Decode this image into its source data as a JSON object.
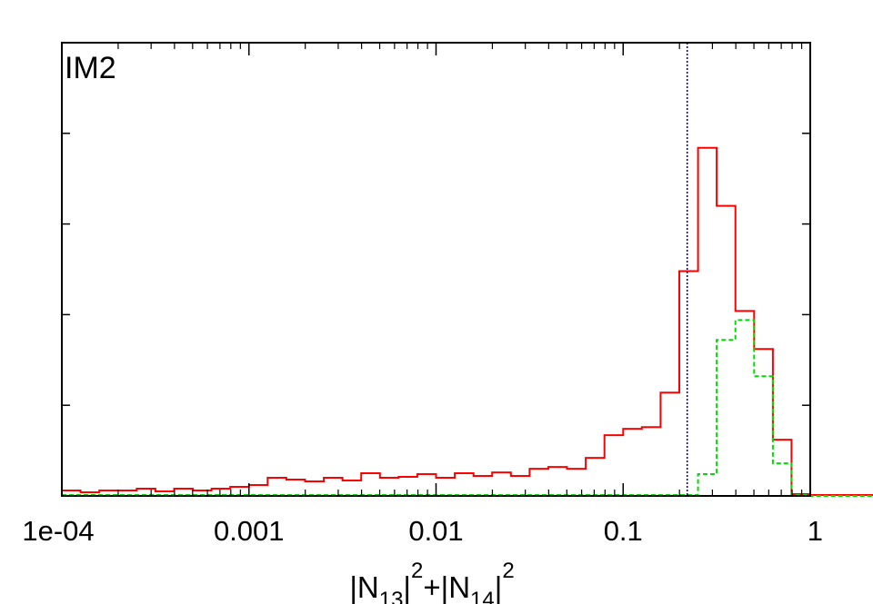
{
  "chart_data": {
    "type": "histogram",
    "panel_label": "IM2",
    "xlabel": {
      "parts": [
        {
          "text": "|N",
          "shift": "none"
        },
        {
          "text": "13",
          "shift": "sub"
        },
        {
          "text": "|",
          "shift": "none"
        },
        {
          "text": "2",
          "shift": "super"
        },
        {
          "text": "+|N",
          "shift": "none"
        },
        {
          "text": "14",
          "shift": "sub"
        },
        {
          "text": "|",
          "shift": "none"
        },
        {
          "text": "2",
          "shift": "super"
        }
      ]
    },
    "xscale": "log",
    "xlim": [
      0.0001,
      1
    ],
    "xticks": [
      {
        "value": 0.0001,
        "label": "1e-04"
      },
      {
        "value": 0.001,
        "label": "0.001"
      },
      {
        "value": 0.01,
        "label": "0.01"
      },
      {
        "value": 0.1,
        "label": "0.1"
      },
      {
        "value": 1,
        "label": "1"
      }
    ],
    "ylim": [
      0,
      5.0
    ],
    "yticks": [
      0,
      1,
      2,
      3,
      4,
      5
    ],
    "y_tick_labels_shown": false,
    "bins_per_decade": 10,
    "series": [
      {
        "style": "solid",
        "color": "#ff0000",
        "values": [
          0.06,
          0.04,
          0.06,
          0.06,
          0.08,
          0.05,
          0.08,
          0.06,
          0.08,
          0.1,
          0.12,
          0.2,
          0.18,
          0.16,
          0.2,
          0.17,
          0.25,
          0.2,
          0.21,
          0.24,
          0.2,
          0.25,
          0.22,
          0.26,
          0.22,
          0.3,
          0.32,
          0.3,
          0.42,
          0.67,
          0.74,
          0.76,
          1.14,
          2.48,
          3.84,
          3.2,
          2.04,
          1.62,
          0.62,
          0.02,
          0.01,
          0.01,
          0.01,
          0.01
        ]
      },
      {
        "style": "dashed",
        "color": "#00dd00",
        "values": [
          0.01,
          0.01,
          0.01,
          0.01,
          0.01,
          0.01,
          0.01,
          0.01,
          0.01,
          0.01,
          0.01,
          0.01,
          0.01,
          0.01,
          0.01,
          0.01,
          0.01,
          0.01,
          0.01,
          0.01,
          0.01,
          0.01,
          0.01,
          0.01,
          0.01,
          0.01,
          0.01,
          0.01,
          0.01,
          0.01,
          0.01,
          0.01,
          0.01,
          0.01,
          0.24,
          1.72,
          1.94,
          1.32,
          0.36,
          0.01,
          0.0,
          0.0,
          0.0,
          0.0
        ]
      }
    ],
    "vline": {
      "x": 0.22,
      "style": "dotted",
      "color": "#0000cc"
    },
    "grid": false
  }
}
